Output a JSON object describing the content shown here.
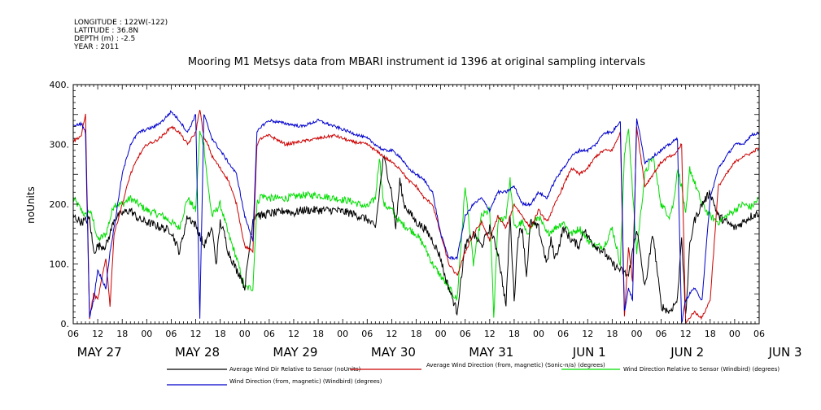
{
  "header": {
    "longitude": "LONGITUDE : 122W(-122)",
    "latitude": "LATITUDE : 36.8N",
    "depth": "DEPTH (m) : -2.5",
    "year": "YEAR : 2011"
  },
  "chart_data": {
    "type": "line",
    "title": "Mooring M1 Metsys data from MBARI instrument id 1396 at original sampling intervals",
    "ylabel": "noUnits",
    "xlabel": "",
    "ylim": [
      0,
      400
    ],
    "xlim_hours": [
      0,
      168
    ],
    "y_ticks": [
      "0.",
      "100.",
      "200.",
      "300.",
      "400."
    ],
    "x_tick_labels": [
      "06",
      "12",
      "18",
      "00",
      "06",
      "12",
      "18",
      "00",
      "06",
      "12",
      "18",
      "00",
      "06",
      "12",
      "18",
      "00",
      "06",
      "12",
      "18",
      "00",
      "06",
      "12",
      "18",
      "00",
      "06",
      "12",
      "18",
      "00",
      "06"
    ],
    "day_labels": [
      "MAY 27",
      "MAY 28",
      "MAY 29",
      "MAY 30",
      "MAY 31",
      "JUN  1",
      "JUN  2",
      "JUN  3"
    ],
    "grid": false,
    "legend_position": "bottom",
    "x_unit_note": "hours since 2011-05-27 06:00",
    "series": [
      {
        "name": "Average Wind Dir Relative to Sensor (noUnits)",
        "color": "#000000",
        "x": [
          0,
          2,
          4,
          5,
          6,
          8,
          9,
          10,
          12,
          14,
          16,
          18,
          20,
          22,
          24,
          26,
          28,
          30,
          32,
          34,
          35,
          36,
          37,
          38,
          40,
          41,
          42,
          44,
          45,
          46,
          48,
          50,
          52,
          54,
          56,
          60,
          64,
          68,
          72,
          74,
          76,
          78,
          79,
          80,
          81,
          82,
          84,
          86,
          88,
          90,
          91,
          92,
          94,
          96,
          98,
          100,
          102,
          104,
          106,
          107,
          108,
          109,
          110,
          111,
          112,
          114,
          116,
          117,
          118,
          119,
          120,
          122,
          124,
          125,
          126,
          128,
          130,
          132,
          136,
          138,
          140,
          142,
          144,
          146,
          148,
          149,
          150,
          151,
          152,
          154,
          156,
          158,
          160,
          162,
          164,
          166,
          168
        ],
        "values": [
          180,
          170,
          175,
          120,
          130,
          130,
          150,
          175,
          185,
          190,
          175,
          170,
          165,
          160,
          155,
          120,
          180,
          165,
          130,
          160,
          100,
          170,
          150,
          120,
          90,
          80,
          60,
          175,
          185,
          180,
          185,
          185,
          190,
          185,
          190,
          190,
          190,
          185,
          175,
          160,
          280,
          220,
          160,
          240,
          200,
          190,
          170,
          160,
          140,
          110,
          80,
          60,
          20,
          130,
          150,
          130,
          160,
          120,
          30,
          180,
          40,
          150,
          160,
          80,
          170,
          160,
          100,
          140,
          110,
          130,
          160,
          140,
          130,
          160,
          145,
          130,
          120,
          100,
          80,
          160,
          60,
          150,
          30,
          20,
          40,
          150,
          10,
          130,
          170,
          200,
          220,
          180,
          170,
          160,
          170,
          180,
          185
        ]
      },
      {
        "name": "Average Wind Direction (from, magnetic) (Sonic-n/a) (degrees)",
        "color": "#cc0000",
        "x": [
          0,
          2,
          3,
          4,
          5,
          6,
          8,
          9,
          10,
          12,
          14,
          16,
          18,
          20,
          22,
          24,
          26,
          28,
          30,
          31,
          32,
          33,
          34,
          36,
          38,
          40,
          42,
          44,
          45,
          46,
          48,
          52,
          56,
          60,
          64,
          68,
          72,
          74,
          76,
          78,
          80,
          82,
          84,
          86,
          88,
          90,
          92,
          94,
          96,
          98,
          100,
          102,
          104,
          106,
          108,
          110,
          112,
          114,
          116,
          118,
          120,
          122,
          124,
          126,
          128,
          130,
          132,
          134,
          135,
          136,
          137,
          138,
          140,
          142,
          144,
          146,
          147,
          148,
          149,
          150,
          152,
          154,
          156,
          158,
          160,
          162,
          164,
          166,
          168
        ],
        "values": [
          305,
          315,
          350,
          10,
          50,
          40,
          110,
          30,
          150,
          200,
          250,
          280,
          300,
          305,
          315,
          330,
          320,
          300,
          320,
          360,
          310,
          300,
          280,
          260,
          240,
          200,
          130,
          120,
          300,
          310,
          315,
          300,
          305,
          310,
          315,
          305,
          300,
          290,
          280,
          270,
          260,
          240,
          230,
          210,
          200,
          150,
          100,
          80,
          120,
          150,
          170,
          140,
          180,
          160,
          200,
          180,
          160,
          190,
          170,
          200,
          230,
          260,
          250,
          260,
          280,
          290,
          290,
          320,
          10,
          130,
          70,
          330,
          230,
          250,
          270,
          280,
          280,
          290,
          300,
          0,
          20,
          10,
          40,
          230,
          250,
          270,
          280,
          285,
          295
        ]
      },
      {
        "name": "Wind Direction Relative to Sensor (Windbird) (degrees)",
        "color": "#00dd00",
        "x": [
          0,
          2,
          3,
          4,
          5,
          6,
          8,
          10,
          12,
          14,
          16,
          18,
          20,
          22,
          24,
          26,
          28,
          30,
          31,
          32,
          33,
          34,
          36,
          38,
          40,
          42,
          44,
          45,
          46,
          48,
          52,
          56,
          60,
          64,
          68,
          72,
          74,
          75,
          76,
          78,
          80,
          82,
          84,
          86,
          88,
          90,
          92,
          94,
          96,
          98,
          100,
          102,
          103,
          104,
          106,
          107,
          108,
          110,
          111,
          112,
          114,
          116,
          118,
          120,
          122,
          124,
          126,
          128,
          130,
          132,
          134,
          135,
          136,
          137,
          138,
          140,
          142,
          144,
          146,
          147,
          148,
          149,
          150,
          151,
          152,
          154,
          156,
          158,
          160,
          162,
          164,
          166,
          168
        ],
        "values": [
          210,
          190,
          180,
          190,
          170,
          140,
          150,
          200,
          200,
          210,
          200,
          190,
          185,
          180,
          170,
          160,
          210,
          190,
          320,
          300,
          230,
          180,
          200,
          150,
          110,
          60,
          60,
          200,
          215,
          210,
          210,
          215,
          215,
          210,
          205,
          195,
          210,
          280,
          200,
          190,
          170,
          160,
          150,
          130,
          100,
          80,
          60,
          40,
          230,
          100,
          180,
          190,
          10,
          170,
          180,
          240,
          160,
          170,
          150,
          160,
          180,
          150,
          160,
          170,
          150,
          160,
          140,
          130,
          130,
          160,
          100,
          280,
          330,
          220,
          120,
          250,
          280,
          200,
          180,
          200,
          260,
          230,
          180,
          260,
          240,
          200,
          180,
          170,
          180,
          190,
          200,
          195,
          210
        ]
      },
      {
        "name": "Wind Direction (from, magnetic) (Windbird) (degrees)",
        "color": "#0000cc",
        "x": [
          0,
          2,
          3,
          4,
          5,
          6,
          8,
          9,
          10,
          12,
          14,
          16,
          18,
          20,
          22,
          24,
          26,
          28,
          30,
          31,
          32,
          33,
          34,
          36,
          38,
          40,
          42,
          44,
          45,
          46,
          48,
          52,
          56,
          60,
          64,
          68,
          72,
          74,
          76,
          78,
          80,
          82,
          84,
          86,
          88,
          90,
          92,
          94,
          96,
          98,
          100,
          102,
          104,
          106,
          108,
          110,
          112,
          114,
          116,
          118,
          120,
          122,
          124,
          126,
          128,
          130,
          132,
          134,
          135,
          136,
          137,
          138,
          140,
          142,
          144,
          146,
          148,
          149,
          150,
          152,
          154,
          156,
          158,
          160,
          162,
          164,
          166,
          168
        ],
        "values": [
          330,
          335,
          320,
          10,
          40,
          90,
          60,
          120,
          160,
          250,
          300,
          320,
          325,
          330,
          340,
          355,
          340,
          320,
          350,
          10,
          350,
          330,
          310,
          290,
          270,
          250,
          180,
          140,
          320,
          330,
          340,
          335,
          330,
          340,
          330,
          320,
          310,
          300,
          290,
          290,
          280,
          260,
          250,
          240,
          220,
          150,
          110,
          110,
          180,
          200,
          210,
          190,
          220,
          220,
          230,
          200,
          200,
          220,
          210,
          240,
          260,
          280,
          290,
          290,
          300,
          320,
          320,
          340,
          20,
          60,
          40,
          345,
          270,
          280,
          290,
          300,
          310,
          0,
          40,
          60,
          40,
          210,
          260,
          280,
          300,
          300,
          315,
          320
        ]
      }
    ]
  }
}
